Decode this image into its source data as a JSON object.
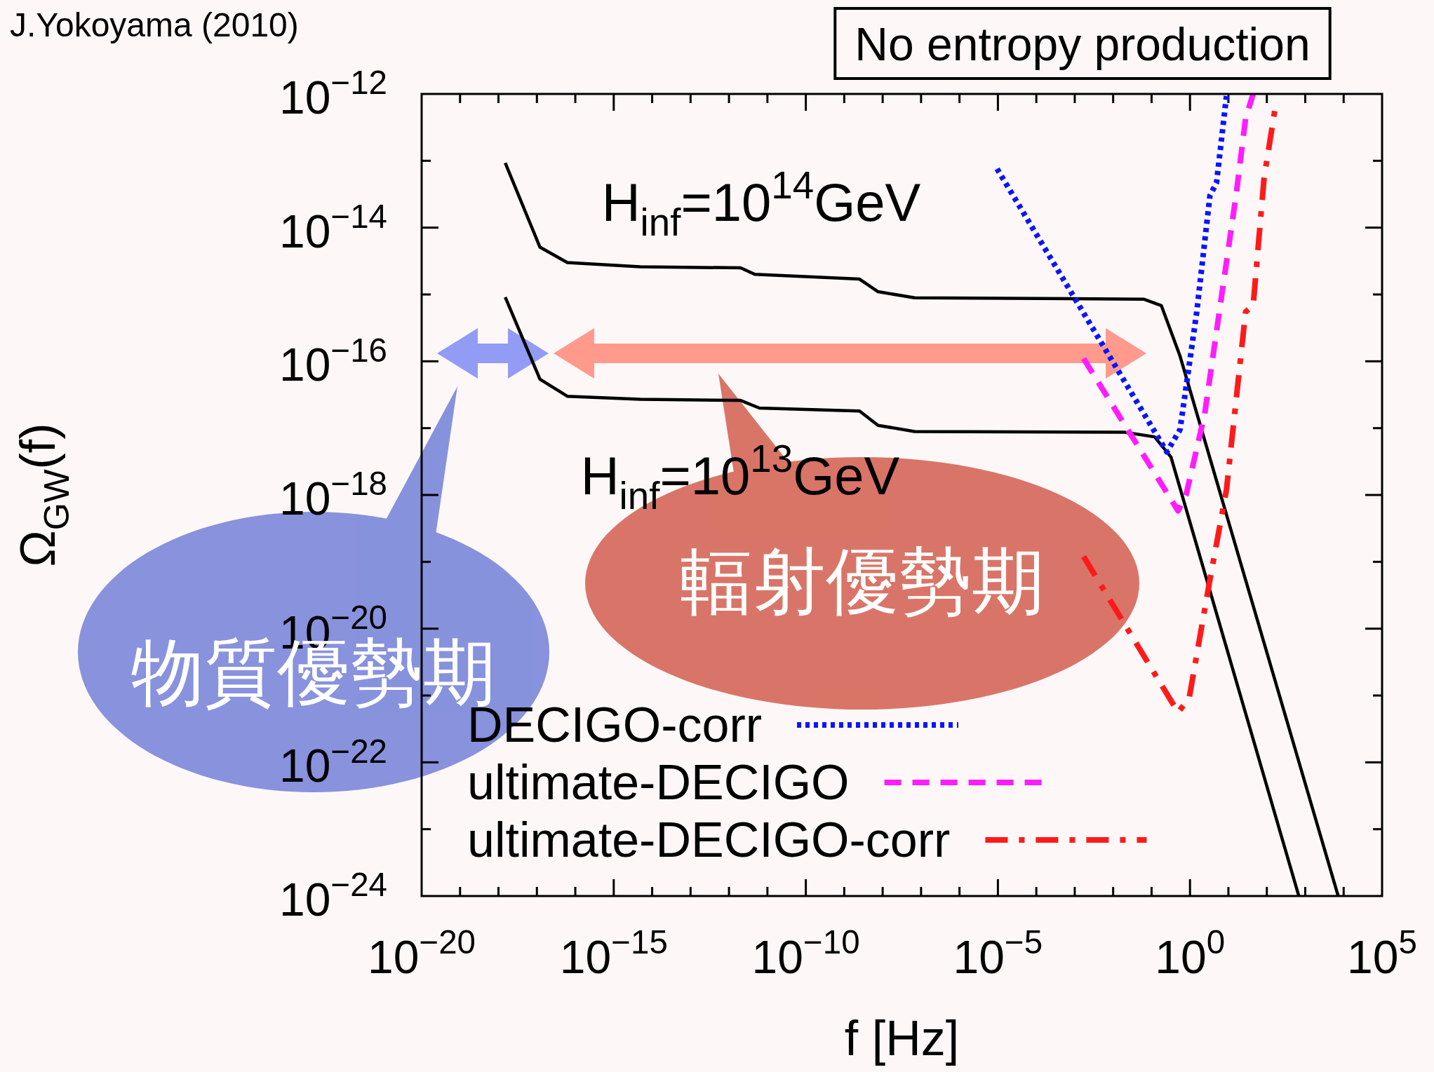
{
  "chart_data": {
    "type": "line",
    "xlabel": "f [Hz]",
    "ylabel": "Ω$_{GW}$(f)",
    "log": "xy",
    "grid": false,
    "legend": "bottom left",
    "xlim": [
      1e-20,
      100000.0
    ],
    "ylim": [
      1e-24,
      1e-12
    ],
    "xticks": [
      {
        "value": 1e-20,
        "label": "10$^{−20}$"
      },
      {
        "value": 1e-19,
        "label": null
      },
      {
        "value": 1e-18,
        "label": null
      },
      {
        "value": 1e-17,
        "label": null
      },
      {
        "value": 1e-16,
        "label": null
      },
      {
        "value": 1e-15,
        "label": "10$^{−15}$"
      },
      {
        "value": 1e-14,
        "label": null
      },
      {
        "value": 1e-13,
        "label": null
      },
      {
        "value": 1e-12,
        "label": null
      },
      {
        "value": 1e-11,
        "label": null
      },
      {
        "value": 1e-10,
        "label": "10$^{−10}$"
      },
      {
        "value": 1e-09,
        "label": null
      },
      {
        "value": 1e-08,
        "label": null
      },
      {
        "value": 1e-07,
        "label": null
      },
      {
        "value": 1e-06,
        "label": null
      },
      {
        "value": 1e-05,
        "label": "10$^{−5}$"
      },
      {
        "value": 0.0001,
        "label": null
      },
      {
        "value": 0.001,
        "label": null
      },
      {
        "value": 0.01,
        "label": null
      },
      {
        "value": 0.1,
        "label": null
      },
      {
        "value": 1,
        "label": "10$^{0}$"
      },
      {
        "value": 10,
        "label": null
      },
      {
        "value": 100,
        "label": null
      },
      {
        "value": 1000,
        "label": null
      },
      {
        "value": 10000,
        "label": null
      },
      {
        "value": 100000,
        "label": "10$^{5}$"
      }
    ],
    "yticks": [
      {
        "value": 1e-24,
        "label": "10$^{−24}$"
      },
      {
        "value": 1e-23,
        "label": null
      },
      {
        "value": 1e-22,
        "label": "10$^{−22}$"
      },
      {
        "value": 1e-21,
        "label": null
      },
      {
        "value": 1e-20,
        "label": "10$^{−20}$"
      },
      {
        "value": 1e-19,
        "label": null
      },
      {
        "value": 1e-18,
        "label": "10$^{−18}$"
      },
      {
        "value": 1e-17,
        "label": null
      },
      {
        "value": 1e-16,
        "label": "10$^{−16}$"
      },
      {
        "value": 1e-15,
        "label": null
      },
      {
        "value": 1e-14,
        "label": "10$^{−14}$"
      },
      {
        "value": 1e-13,
        "label": null
      },
      {
        "value": 1e-12,
        "label": "10$^{−12}$"
      }
    ],
    "series": [
      {
        "color": "#000000",
        "line_style": "solid",
        "x": [
          1.5e-18,
          1.2e-17,
          6.2e-17,
          4.9e-15,
          2e-12,
          4.7e-12,
          2.5e-09,
          7.6e-09,
          6.8e-08,
          0.062,
          0.18,
          0.55,
          7200
        ],
        "values": [
          9.3e-14,
          5.1e-15,
          3e-15,
          2.6e-15,
          2.5e-15,
          2e-15,
          1.7e-15,
          1.1e-15,
          8.9e-16,
          8.5e-16,
          6.8e-16,
          1.2e-16,
          1e-24
        ]
      },
      {
        "color": "#000000",
        "line_style": "solid",
        "x": [
          1.5e-18,
          1.2e-17,
          6.2e-17,
          4.9e-15,
          2e-12,
          6.2e-12,
          2.5e-09,
          7.6e-09,
          6.8e-08,
          0.02,
          0.12,
          0.32,
          680
        ],
        "values": [
          9.1e-16,
          5.4e-17,
          3e-17,
          2.7e-17,
          2.6e-17,
          2e-17,
          1.8e-17,
          1.1e-17,
          8.9e-18,
          8.7e-18,
          7.4e-18,
          3.7e-18,
          1e-24
        ]
      },
      {
        "name": "DECIGO-corr",
        "color": "#0a14ff",
        "line_style": "dotted",
        "x": [
          9.5e-06,
          0.25,
          0.55,
          1.5,
          3.3,
          4.9,
          8.9
        ],
        "values": [
          7.6e-14,
          4.4e-18,
          9.5e-18,
          5.5e-16,
          3e-14,
          4.7e-14,
          9.3e-13
        ]
      },
      {
        "name": "ultimate-DECIGO",
        "color": "#ff1cff",
        "line_style": "dashed",
        "x": [
          0.0017,
          0.49,
          0.79,
          2.4,
          16,
          28,
          44
        ],
        "values": [
          1.1e-16,
          5.8e-19,
          1e-18,
          1.6e-17,
          3.2e-14,
          4.3e-13,
          1e-12
        ]
      },
      {
        "name": "ultimate-DECIGO-corr",
        "color": "#ff1a1a",
        "line_style": "dashdot",
        "x": [
          0.0017,
          0.49,
          0.95,
          3.3,
          8.9,
          28,
          44,
          85,
          170
        ],
        "values": [
          1.2e-19,
          5.6e-22,
          9.1e-22,
          5.4e-20,
          1.2e-18,
          5.5e-16,
          6.8e-16,
          5.6e-14,
          6.9e-13
        ]
      }
    ],
    "annotations": [
      "No entropy production",
      "J.Yokoyama (2010)",
      "物質優勢期",
      "輻射優勢期",
      "H$_{inf}$=10$^{14}$GeV",
      "H$_{inf}$=10$^{13}$GeV"
    ]
  }
}
